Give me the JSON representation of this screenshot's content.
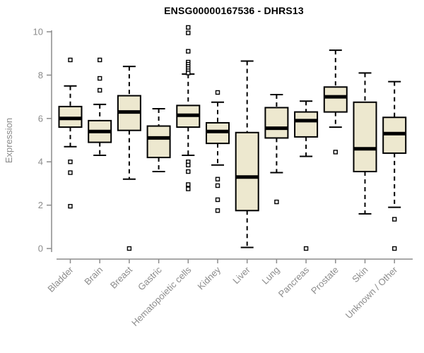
{
  "chart_data": {
    "type": "boxplot",
    "title": "ENSG00000167536 - DHRS13",
    "ylabel": "Expression",
    "xlabel": "",
    "ylim": [
      0,
      10
    ],
    "yticks": [
      0,
      2,
      4,
      6,
      8,
      10
    ],
    "grid": false,
    "legend": "none",
    "box_fill_color": "#EDE8CF",
    "box_stroke_color": "#000000",
    "axis_color": "#8c8c8c",
    "title_color": "#000000",
    "categories": [
      "Bladder",
      "Brain",
      "Breast",
      "Gastric",
      "Hematopoietic cells",
      "Kidney",
      "Liver",
      "Lung",
      "Pancreas",
      "Prostate",
      "Skin",
      "Unknown / Other"
    ],
    "series": [
      {
        "category": "Bladder",
        "whisker_low": 4.7,
        "q1": 5.6,
        "median": 6.0,
        "q3": 6.55,
        "whisker_high": 7.5,
        "outliers": [
          8.7,
          4.0,
          3.5,
          1.95
        ]
      },
      {
        "category": "Brain",
        "whisker_low": 4.3,
        "q1": 4.9,
        "median": 5.4,
        "q3": 5.9,
        "whisker_high": 6.65,
        "outliers": [
          8.7,
          7.85,
          7.3
        ]
      },
      {
        "category": "Breast",
        "whisker_low": 3.2,
        "q1": 5.45,
        "median": 6.3,
        "q3": 7.05,
        "whisker_high": 8.4,
        "outliers": [
          0.0
        ]
      },
      {
        "category": "Gastric",
        "whisker_low": 3.55,
        "q1": 4.2,
        "median": 5.1,
        "q3": 5.65,
        "whisker_high": 6.45,
        "outliers": []
      },
      {
        "category": "Hematopoietic cells",
        "whisker_low": 4.3,
        "q1": 5.6,
        "median": 6.15,
        "q3": 6.6,
        "whisker_high": 8.05,
        "outliers": [
          10.2,
          9.95,
          9.1,
          8.6,
          8.5,
          8.4,
          8.3,
          8.2,
          8.1,
          4.0,
          3.85,
          3.55,
          2.95,
          2.75
        ]
      },
      {
        "category": "Kidney",
        "whisker_low": 3.85,
        "q1": 4.85,
        "median": 5.4,
        "q3": 5.8,
        "whisker_high": 6.75,
        "outliers": [
          7.2,
          3.2,
          2.9,
          2.25,
          1.75
        ]
      },
      {
        "category": "Liver",
        "whisker_low": 0.05,
        "q1": 1.75,
        "median": 3.3,
        "q3": 5.35,
        "whisker_high": 8.65,
        "outliers": []
      },
      {
        "category": "Lung",
        "whisker_low": 3.5,
        "q1": 5.1,
        "median": 5.55,
        "q3": 6.5,
        "whisker_high": 7.1,
        "outliers": [
          2.15
        ]
      },
      {
        "category": "Pancreas",
        "whisker_low": 4.25,
        "q1": 5.15,
        "median": 5.9,
        "q3": 6.3,
        "whisker_high": 6.8,
        "outliers": [
          0.0
        ]
      },
      {
        "category": "Prostate",
        "whisker_low": 5.6,
        "q1": 6.3,
        "median": 7.0,
        "q3": 7.45,
        "whisker_high": 9.15,
        "outliers": [
          4.45
        ]
      },
      {
        "category": "Skin",
        "whisker_low": 1.6,
        "q1": 3.55,
        "median": 4.6,
        "q3": 6.75,
        "whisker_high": 8.1,
        "outliers": []
      },
      {
        "category": "Unknown / Other",
        "whisker_low": 1.9,
        "q1": 4.4,
        "median": 5.3,
        "q3": 6.05,
        "whisker_high": 7.7,
        "outliers": [
          1.35,
          0.0
        ]
      }
    ]
  }
}
